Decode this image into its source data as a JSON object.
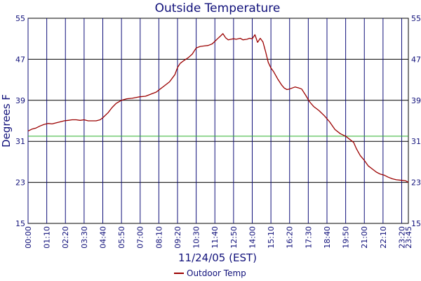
{
  "chart_data": {
    "type": "line",
    "title": "Outside Temperature",
    "xlabel": "11/24/05 (EST)",
    "ylabel": "Degrees F",
    "ylim": [
      15,
      55
    ],
    "yticks": [
      "15",
      "23",
      "31",
      "39",
      "47",
      "55"
    ],
    "xticks": [
      "00:00",
      "01:10",
      "02:20",
      "03:30",
      "04:40",
      "05:50",
      "07:00",
      "08:10",
      "09:20",
      "10:30",
      "11:40",
      "12:50",
      "14:00",
      "15:10",
      "16:20",
      "17:30",
      "18:40",
      "19:50",
      "21:00",
      "22:10",
      "23:20",
      "23:45"
    ],
    "xlim": [
      "00:00",
      "23:45"
    ],
    "grid": true,
    "reference_line": {
      "value": 32,
      "color": "#2db02d"
    },
    "legend_position": "bottom-center",
    "series": [
      {
        "name": "Outdoor Temp",
        "color": "#9b0000",
        "points": [
          [
            "00:00",
            33.0
          ],
          [
            "00:15",
            33.4
          ],
          [
            "00:30",
            33.6
          ],
          [
            "00:45",
            34.0
          ],
          [
            "01:00",
            34.3
          ],
          [
            "01:15",
            34.5
          ],
          [
            "01:30",
            34.4
          ],
          [
            "01:45",
            34.6
          ],
          [
            "02:00",
            34.8
          ],
          [
            "02:15",
            35.0
          ],
          [
            "02:30",
            35.1
          ],
          [
            "02:45",
            35.2
          ],
          [
            "03:00",
            35.2
          ],
          [
            "03:15",
            35.1
          ],
          [
            "03:30",
            35.2
          ],
          [
            "03:45",
            35.0
          ],
          [
            "04:00",
            35.0
          ],
          [
            "04:15",
            35.0
          ],
          [
            "04:30",
            35.2
          ],
          [
            "04:40",
            35.6
          ],
          [
            "05:00",
            36.6
          ],
          [
            "05:15",
            37.6
          ],
          [
            "05:30",
            38.4
          ],
          [
            "05:50",
            39.0
          ],
          [
            "06:10",
            39.3
          ],
          [
            "06:30",
            39.4
          ],
          [
            "06:50",
            39.6
          ],
          [
            "07:00",
            39.7
          ],
          [
            "07:20",
            39.8
          ],
          [
            "07:40",
            40.2
          ],
          [
            "08:00",
            40.6
          ],
          [
            "08:10",
            41.0
          ],
          [
            "08:30",
            41.8
          ],
          [
            "08:50",
            42.6
          ],
          [
            "09:10",
            44.0
          ],
          [
            "09:20",
            45.4
          ],
          [
            "09:30",
            46.2
          ],
          [
            "09:45",
            46.8
          ],
          [
            "10:00",
            47.3
          ],
          [
            "10:15",
            48.0
          ],
          [
            "10:30",
            49.2
          ],
          [
            "10:45",
            49.5
          ],
          [
            "11:00",
            49.6
          ],
          [
            "11:15",
            49.7
          ],
          [
            "11:30",
            50.0
          ],
          [
            "11:40",
            50.5
          ],
          [
            "11:50",
            51.0
          ],
          [
            "12:00",
            51.5
          ],
          [
            "12:10",
            52.0
          ],
          [
            "12:20",
            51.2
          ],
          [
            "12:30",
            50.8
          ],
          [
            "12:40",
            50.9
          ],
          [
            "12:50",
            51.0
          ],
          [
            "13:00",
            50.9
          ],
          [
            "13:15",
            51.1
          ],
          [
            "13:25",
            50.8
          ],
          [
            "13:40",
            50.9
          ],
          [
            "13:50",
            51.1
          ],
          [
            "14:00",
            51.0
          ],
          [
            "14:10",
            51.8
          ],
          [
            "14:20",
            50.3
          ],
          [
            "14:30",
            51.1
          ],
          [
            "14:40",
            50.4
          ],
          [
            "14:50",
            48.5
          ],
          [
            "15:00",
            46.4
          ],
          [
            "15:10",
            45.3
          ],
          [
            "15:20",
            44.6
          ],
          [
            "15:35",
            43.2
          ],
          [
            "15:50",
            42.0
          ],
          [
            "16:00",
            41.4
          ],
          [
            "16:10",
            41.1
          ],
          [
            "16:20",
            41.2
          ],
          [
            "16:40",
            41.6
          ],
          [
            "16:55",
            41.4
          ],
          [
            "17:05",
            41.2
          ],
          [
            "17:20",
            40.0
          ],
          [
            "17:35",
            38.7
          ],
          [
            "17:50",
            37.8
          ],
          [
            "18:10",
            37.0
          ],
          [
            "18:30",
            36.0
          ],
          [
            "18:50",
            34.8
          ],
          [
            "19:10",
            33.3
          ],
          [
            "19:30",
            32.5
          ],
          [
            "19:50",
            32.0
          ],
          [
            "20:00",
            31.6
          ],
          [
            "20:20",
            30.8
          ],
          [
            "20:30",
            29.6
          ],
          [
            "20:45",
            28.2
          ],
          [
            "21:00",
            27.3
          ],
          [
            "21:15",
            26.2
          ],
          [
            "21:30",
            25.6
          ],
          [
            "21:45",
            25.0
          ],
          [
            "22:00",
            24.6
          ],
          [
            "22:15",
            24.4
          ],
          [
            "22:30",
            24.0
          ],
          [
            "22:45",
            23.7
          ],
          [
            "23:00",
            23.5
          ],
          [
            "23:20",
            23.4
          ],
          [
            "23:35",
            23.3
          ],
          [
            "23:45",
            23.0
          ]
        ]
      }
    ]
  }
}
